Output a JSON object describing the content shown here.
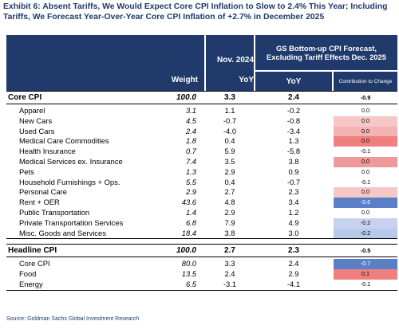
{
  "title": "Exhibit 6: Absent Tariffs, We Would Expect Core CPI Inflation to Slow to 2.4% This Year; Including Tariffs, We Forecast Year-Over-Year Core CPI Inflation of +2.7% in December 2025",
  "headers": {
    "weight": "Weight",
    "nov": "Nov. 2024",
    "nov_yoy": "YoY",
    "gs_title": "GS Bottom-up CPI Forecast, Excluding Tariff Effects Dec. 2025",
    "gs_yoy": "YoY",
    "contrib": "Contribution to Change"
  },
  "sections": [
    {
      "main": {
        "label": "Core CPI",
        "weight": "100.0",
        "nov": "3.3",
        "gs": "2.4",
        "contrib": "-0.9",
        "color": "#ffffff"
      },
      "rows": [
        {
          "label": "Apparel",
          "weight": "3.1",
          "nov": "1.1",
          "gs": "-0.2",
          "contrib": "0.0",
          "color": "#ffffff"
        },
        {
          "label": "New Cars",
          "weight": "4.5",
          "nov": "-0.7",
          "gs": "-0.8",
          "contrib": "0.0",
          "color": "#f7c7c7"
        },
        {
          "label": "Used Cars",
          "weight": "2.4",
          "nov": "-4.0",
          "gs": "-3.4",
          "contrib": "0.0",
          "color": "#f4b3b3"
        },
        {
          "label": "Medical Care Commodities",
          "weight": "1.8",
          "nov": "0.4",
          "gs": "1.3",
          "contrib": "0.0",
          "color": "#f08080"
        },
        {
          "label": "Health Insurance",
          "weight": "0.7",
          "nov": "5.9",
          "gs": "-5.8",
          "contrib": "-0.1",
          "color": "#ffffff"
        },
        {
          "label": "Medical Services ex. Insurance",
          "weight": "7.4",
          "nov": "3.5",
          "gs": "3.8",
          "contrib": "0.0",
          "color": "#ee9a9a"
        },
        {
          "label": "Pets",
          "weight": "1.3",
          "nov": "2.9",
          "gs": "0.9",
          "contrib": "0.0",
          "color": "#ffffff"
        },
        {
          "label": "Household Furnishings + Ops.",
          "weight": "5.5",
          "nov": "0.4",
          "gs": "-0.7",
          "contrib": "-0.1",
          "color": "#ffffff"
        },
        {
          "label": "Personal Care",
          "weight": "2.9",
          "nov": "2.7",
          "gs": "2.3",
          "contrib": "0.0",
          "color": "#f7c7c7"
        },
        {
          "label": "Rent + OER",
          "weight": "43.6",
          "nov": "4.8",
          "gs": "3.4",
          "contrib": "-0.6",
          "color": "#5b7fc7"
        },
        {
          "label": "Public Transportation",
          "weight": "1.4",
          "nov": "2.9",
          "gs": "1.2",
          "contrib": "0.0",
          "color": "#ffffff"
        },
        {
          "label": "Private Transportation Services",
          "weight": "6.8",
          "nov": "7.9",
          "gs": "4.9",
          "contrib": "-0.2",
          "color": "#c7d3ee"
        },
        {
          "label": "Misc. Goods and Services",
          "weight": "18.4",
          "nov": "3.8",
          "gs": "3.0",
          "contrib": "-0.2",
          "color": "#b9c9eb"
        }
      ]
    },
    {
      "main": {
        "label": "Headline CPI",
        "weight": "100.0",
        "nov": "2.7",
        "gs": "2.3",
        "contrib": "-0.5",
        "color": "#ffffff"
      },
      "rows": [
        {
          "label": "Core CPI",
          "weight": "80.0",
          "nov": "3.3",
          "gs": "2.4",
          "contrib": "-0.7",
          "color": "#5b7fc7"
        },
        {
          "label": "Food",
          "weight": "13.5",
          "nov": "2.4",
          "gs": "2.9",
          "contrib": "0.1",
          "color": "#f08080"
        },
        {
          "label": "Energy",
          "weight": "6.5",
          "nov": "-3.1",
          "gs": "-4.1",
          "contrib": "-0.1",
          "color": "#ffffff"
        }
      ]
    }
  ],
  "source": "Source: Goldman Sachs Global Investment Research"
}
